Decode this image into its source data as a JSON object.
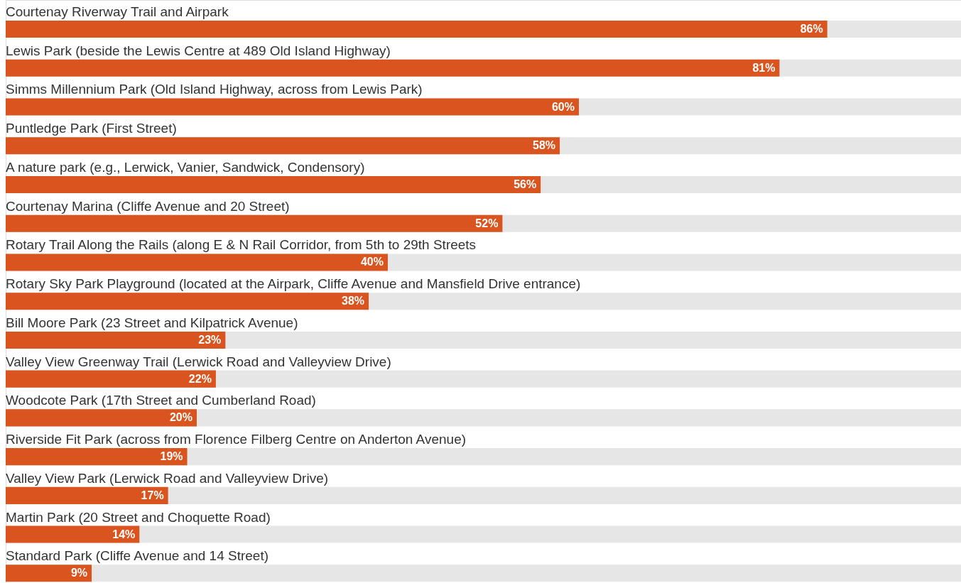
{
  "chart_data": {
    "type": "bar",
    "orientation": "horizontal",
    "categories": [
      "Courtenay Riverway Trail and Airpark",
      "Lewis Park (beside the Lewis Centre at 489 Old Island Highway)",
      "Simms Millennium Park (Old Island Highway, across from Lewis Park)",
      "Puntledge Park (First Street)",
      "A nature park (e.g., Lerwick, Vanier, Sandwick, Condensory)",
      "Courtenay Marina (Cliffe Avenue and 20 Street)",
      "Rotary Trail Along the Rails (along E & N Rail Corridor, from 5th to 29th Streets",
      "Rotary Sky Park Playground (located at the Airpark, Cliffe Avenue and Mansfield Drive entrance)",
      "Bill Moore Park (23 Street and Kilpatrick Avenue)",
      "Valley View Greenway Trail (Lerwick Road and Valleyview Drive)",
      "Woodcote Park (17th Street and Cumberland Road)",
      "Riverside Fit Park (across from Florence Filberg Centre on Anderton Avenue)",
      "Valley View Park (Lerwick Road and Valleyview Drive)",
      "Martin Park (20 Street and Choquette Road)",
      "Standard Park (Cliffe Avenue and 14 Street)"
    ],
    "values": [
      86,
      81,
      60,
      58,
      56,
      52,
      40,
      38,
      23,
      22,
      20,
      19,
      17,
      14,
      9
    ],
    "value_labels": [
      "86%",
      "81%",
      "60%",
      "58%",
      "56%",
      "52%",
      "40%",
      "38%",
      "23%",
      "22%",
      "20%",
      "19%",
      "17%",
      "14%",
      "9%"
    ],
    "color": "#d9541e",
    "xlim": [
      0,
      100
    ]
  }
}
